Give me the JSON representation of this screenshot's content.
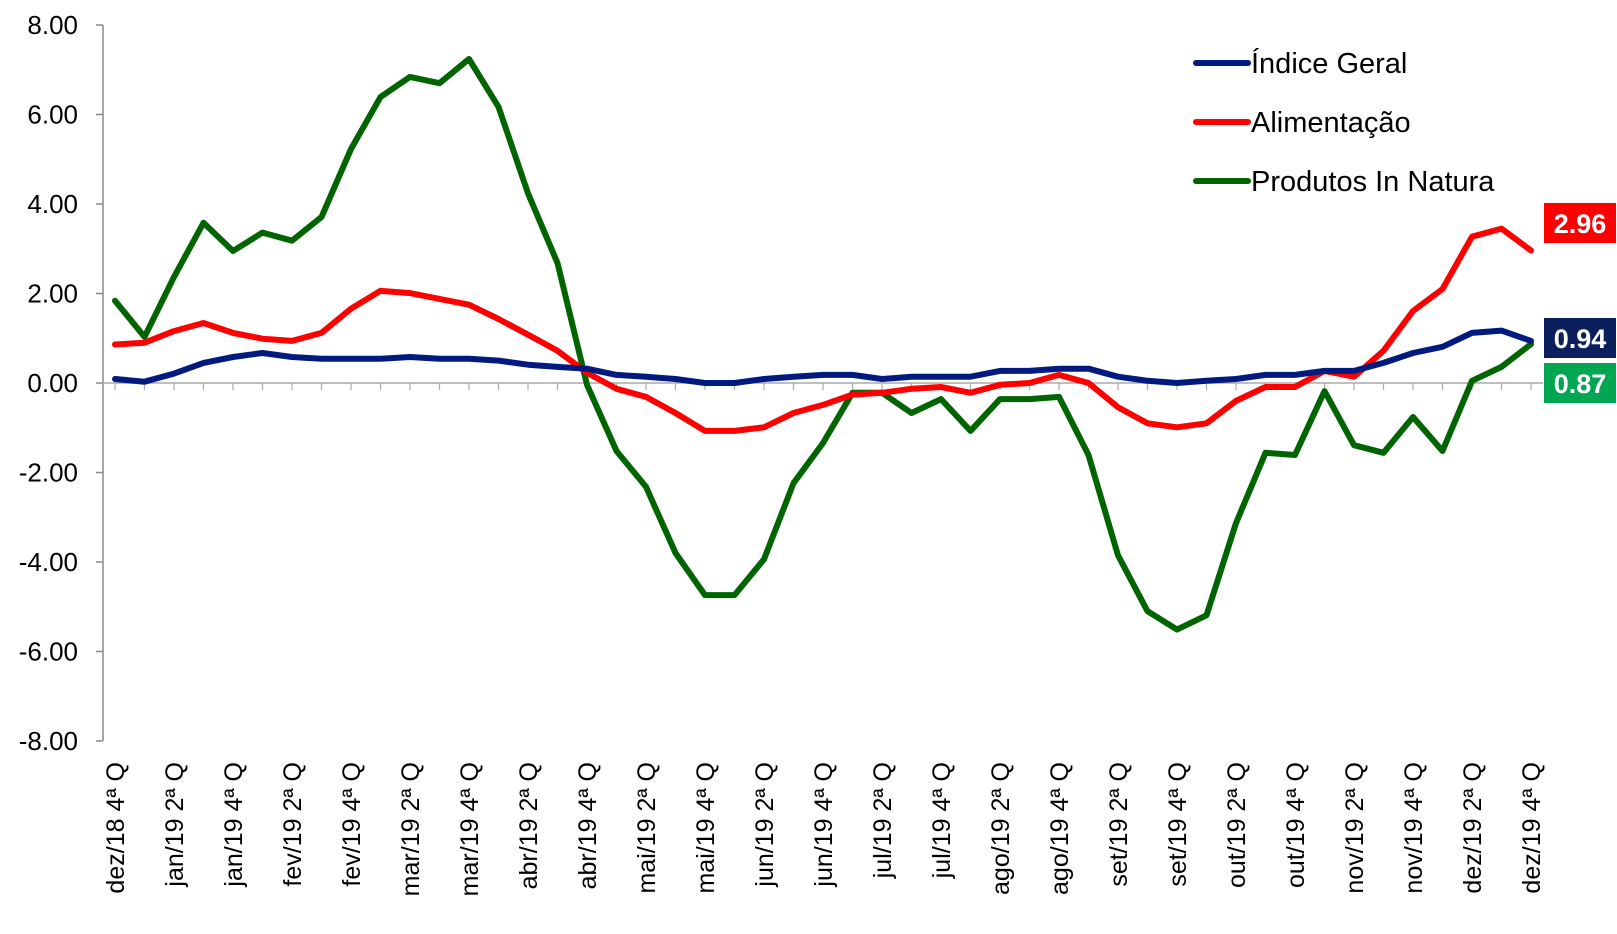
{
  "chart_data": {
    "type": "line",
    "ylim": [
      -8,
      8
    ],
    "y_ticks": [
      -8,
      -6,
      -4,
      -2,
      0,
      2,
      4,
      6,
      8
    ],
    "y_tick_labels": [
      "-8.00",
      "-6.00",
      "-4.00",
      "-2.00",
      "0.00",
      "2.00",
      "4.00",
      "6.00",
      "8.00"
    ],
    "x_labels": [
      "dez/18 4ª Q",
      "jan/19 2ª Q",
      "jan/19 4ª Q",
      "fev/19 2ª Q",
      "fev/19 4ª Q",
      "mar/19 2ª Q",
      "mar/19 4ª Q",
      "abr/19 2ª Q",
      "abr/19 4ª Q",
      "mai/19 2ª Q",
      "mai/19 4ª Q",
      "jun/19 2ª Q",
      "jun/19 4ª Q",
      "jul/19 2ª Q",
      "jul/19 4ª Q",
      "ago/19 2ª Q",
      "ago/19 4ª Q",
      "set/19 2ª Q",
      "set/19 4ª Q",
      "out/19 2ª Q",
      "out/19 4ª Q",
      "nov/19 2ª Q",
      "nov/19 4ª Q",
      "dez/19 2ª Q",
      "dez/19 4ª Q"
    ],
    "legend_position": "top-right",
    "series": [
      {
        "name": "Índice Geral",
        "color": "#001A80",
        "values": [
          0.09,
          0.03,
          0.21,
          0.45,
          0.58,
          0.67,
          0.58,
          0.54,
          0.54,
          0.54,
          0.58,
          0.54,
          0.54,
          0.5,
          0.41,
          0.36,
          0.32,
          0.18,
          0.14,
          0.09,
          0.0,
          0.0,
          0.09,
          0.14,
          0.18,
          0.18,
          0.09,
          0.14,
          0.14,
          0.14,
          0.27,
          0.27,
          0.32,
          0.32,
          0.14,
          0.05,
          0.0,
          0.05,
          0.09,
          0.18,
          0.18,
          0.27,
          0.27,
          0.45,
          0.67,
          0.81,
          1.12,
          1.17,
          0.94
        ]
      },
      {
        "name": "Alimentação",
        "color": "#FF0000",
        "values": [
          0.86,
          0.9,
          1.16,
          1.34,
          1.12,
          0.99,
          0.94,
          1.12,
          1.66,
          2.06,
          2.01,
          1.88,
          1.75,
          1.43,
          1.08,
          0.72,
          0.23,
          -0.13,
          -0.31,
          -0.67,
          -1.07,
          -1.07,
          -0.99,
          -0.67,
          -0.49,
          -0.26,
          -0.22,
          -0.13,
          -0.09,
          -0.22,
          -0.04,
          0.0,
          0.18,
          0.0,
          -0.54,
          -0.9,
          -0.99,
          -0.9,
          -0.4,
          -0.09,
          -0.09,
          0.27,
          0.14,
          0.72,
          1.61,
          2.1,
          3.27,
          3.45,
          2.96
        ]
      },
      {
        "name": "Produtos In Natura",
        "color": "#006400",
        "values": [
          1.84,
          1.03,
          2.37,
          3.58,
          2.95,
          3.36,
          3.18,
          3.71,
          5.23,
          6.39,
          6.84,
          6.7,
          7.24,
          6.17,
          4.24,
          2.68,
          -0.04,
          -1.52,
          -2.32,
          -3.8,
          -4.74,
          -4.74,
          -3.94,
          -2.24,
          -1.34,
          -0.22,
          -0.22,
          -0.67,
          -0.36,
          -1.07,
          -0.36,
          -0.36,
          -0.31,
          -1.61,
          -3.85,
          -5.1,
          -5.51,
          -5.19,
          -3.13,
          -1.56,
          -1.61,
          -0.18,
          -1.39,
          -1.56,
          -0.76,
          -1.52,
          0.05,
          0.36,
          0.87
        ]
      }
    ],
    "end_labels": [
      {
        "text": "2.96",
        "color": "#FF0000",
        "text_color": "#ffffff"
      },
      {
        "text": "0.94",
        "color": "#0B1F5C",
        "text_color": "#ffffff"
      },
      {
        "text": "0.87",
        "color": "#00A651",
        "text_color": "#ffffff"
      }
    ]
  }
}
